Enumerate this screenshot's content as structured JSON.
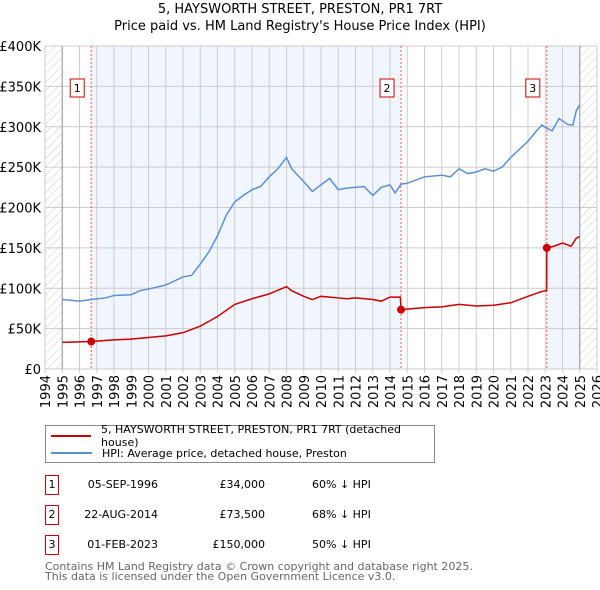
{
  "chart_data": {
    "type": "line",
    "title": "5, HAYSWORTH STREET, PRESTON, PR1 7RT",
    "subtitle": "Price paid vs. HM Land Registry's House Price Index (HPI)",
    "xlim": [
      1994,
      2026
    ],
    "ylim": [
      0,
      400000
    ],
    "y_ticks": [
      "£0",
      "£50K",
      "£100K",
      "£150K",
      "£200K",
      "£250K",
      "£300K",
      "£350K",
      "£400K"
    ],
    "x_ticks": [
      "1994",
      "1995",
      "1996",
      "1997",
      "1998",
      "1999",
      "2000",
      "2001",
      "2002",
      "2003",
      "2004",
      "2005",
      "2006",
      "2007",
      "2008",
      "2009",
      "2010",
      "2011",
      "2012",
      "2013",
      "2014",
      "2015",
      "2016",
      "2017",
      "2018",
      "2019",
      "2020",
      "2021",
      "2022",
      "2023",
      "2024",
      "2025",
      "2026"
    ],
    "grid": true,
    "legend_placement": "below",
    "series": [
      {
        "name": "5, HAYSWORTH STREET, PRESTON, PR1 7RT (detached house)",
        "color": "#cc0000",
        "x": [
          1995,
          1996.67,
          1998,
          1999,
          2000,
          2001,
          2002,
          2003,
          2004,
          2005,
          2006,
          2007,
          2008,
          2008.3,
          2009,
          2009.5,
          2010,
          2011,
          2011.5,
          2012,
          2013,
          2013.5,
          2014,
          2014.6,
          2014.64,
          2016,
          2017,
          2018,
          2019,
          2020,
          2021,
          2022,
          2022.8,
          2023.08,
          2023.09,
          2023.5,
          2024,
          2024.5,
          2024.8,
          2025
        ],
        "y": [
          33000,
          34000,
          36000,
          37000,
          39000,
          41000,
          45000,
          53000,
          65000,
          80000,
          87000,
          93000,
          102000,
          97000,
          90000,
          86000,
          90000,
          88000,
          87000,
          88000,
          86000,
          84000,
          89000,
          89000,
          73500,
          76000,
          77000,
          80000,
          78000,
          79000,
          82000,
          90000,
          96000,
          97000,
          150000,
          152000,
          156000,
          152000,
          162000,
          164000
        ]
      },
      {
        "name": "HPI: Average price, detached house, Preston",
        "color": "#5b8fd6",
        "x": [
          1995,
          1996,
          1996.7,
          1997.5,
          1998,
          1999,
          1999.5,
          2000,
          2001,
          2002,
          2002.5,
          2003,
          2003.5,
          2004,
          2004.5,
          2005,
          2005.5,
          2006,
          2006.5,
          2007,
          2007.5,
          2008,
          2008.3,
          2009,
          2009.5,
          2010,
          2010.5,
          2011,
          2011.5,
          2012,
          2012.5,
          2013,
          2013.5,
          2014,
          2014.3,
          2014.64,
          2015,
          2016,
          2017,
          2017.5,
          2018,
          2018.5,
          2019,
          2019.5,
          2020,
          2020.5,
          2021,
          2021.5,
          2022,
          2022.5,
          2022.8,
          2023.1,
          2023.4,
          2023.8,
          2024.3,
          2024.6,
          2024.8,
          2025
        ],
        "y": [
          86000,
          84000,
          86000,
          88000,
          91000,
          92000,
          97000,
          99000,
          104000,
          114000,
          116000,
          130000,
          145000,
          165000,
          190000,
          207000,
          215000,
          222000,
          226000,
          238000,
          248000,
          262000,
          248000,
          232000,
          220000,
          228000,
          236000,
          222000,
          224000,
          225000,
          226000,
          215000,
          225000,
          228000,
          218000,
          229000,
          230000,
          238000,
          240000,
          238000,
          248000,
          242000,
          244000,
          248000,
          245000,
          250000,
          262000,
          272000,
          282000,
          295000,
          302000,
          298000,
          295000,
          310000,
          303000,
          302000,
          320000,
          327000
        ]
      }
    ],
    "sales": [
      {
        "label": "1",
        "date": "05-SEP-1996",
        "x": 1996.68,
        "price": "£34,000",
        "value": 34000,
        "hpi": "60% ↓ HPI"
      },
      {
        "label": "2",
        "date": "22-AUG-2014",
        "x": 2014.64,
        "price": "£73,500",
        "value": 73500,
        "hpi": "68% ↓ HPI"
      },
      {
        "label": "3",
        "date": "01-FEB-2023",
        "x": 2023.09,
        "price": "£150,000",
        "value": 150000,
        "hpi": "50% ↓ HPI"
      }
    ]
  },
  "footer": {
    "line1": "Contains HM Land Registry data © Crown copyright and database right 2025.",
    "line2": "This data is licensed under the Open Government Licence v3.0."
  }
}
